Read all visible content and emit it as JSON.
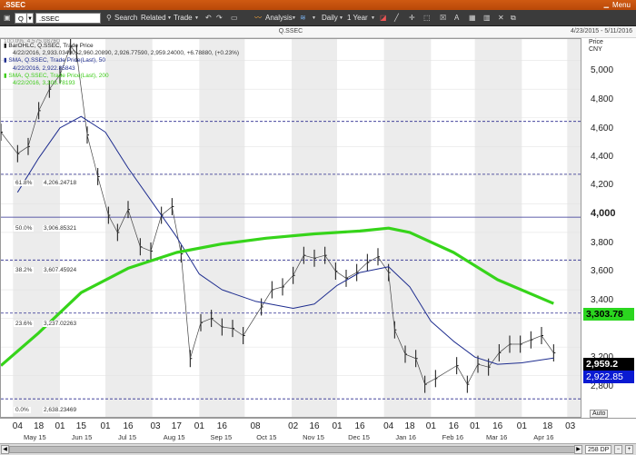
{
  "window": {
    "title": ".SSEC",
    "menu_label": "Menu"
  },
  "toolbar": {
    "symbol_value": "Q",
    "search_value": ".SSEC",
    "search_label": "Search",
    "related_label": "Related",
    "trade_label": "Trade",
    "analysis_label": "Analysis",
    "interval_label": "Daily",
    "range_label": "1 Year"
  },
  "chart_header": {
    "center_title": "Q.SSEC",
    "date_range": "4/23/2015 - 5/11/2016"
  },
  "legend": {
    "line1": "BarOHLC, Q.SSEC, Trade Price",
    "line2": "4/22/2016, 2,933.03490, 2,960.20890, 2,926.77590, 2,959.24000, +6.78880, (+0.23%)",
    "line3": "SMA, Q.SSEC, Trade Price(Last), 50",
    "line4": "4/22/2016, 2,922.85843",
    "line5": "SMA, Q.SSEC, Trade Price(Last), 200",
    "line6": "4/22/2016, 3,303.78193",
    "overlap_text": "100.0%, 4,575.08760"
  },
  "axis": {
    "title_line1": "Price",
    "title_line2": "CNY",
    "ticks": [
      "5,000",
      "4,800",
      "4,600",
      "4,400",
      "4,200",
      "4,000",
      "3,800",
      "3,600",
      "3,400",
      "3,200",
      "2,800"
    ],
    "auto_label": "Auto"
  },
  "price_tags": {
    "sma200": "3,303.78",
    "last": "2,959.2",
    "sma50": "2,922.85"
  },
  "fibonacci": [
    {
      "pct": "61.8%",
      "value": "4,206.24718"
    },
    {
      "pct": "50.0%",
      "value": "3,906.85321"
    },
    {
      "pct": "38.2%",
      "value": "3,607.45924"
    },
    {
      "pct": "23.6%",
      "value": "3,237.02263"
    },
    {
      "pct": "0.0%",
      "value": "2,638.23469"
    }
  ],
  "xaxis": {
    "days": [
      "04",
      "18",
      "01",
      "15",
      "01",
      "16",
      "03",
      "17",
      "01",
      "16",
      "08",
      "02",
      "16",
      "01",
      "16",
      "04",
      "18",
      "01",
      "16",
      "01",
      "16",
      "01",
      "18",
      "03"
    ],
    "months": [
      "May 15",
      "Jun 15",
      "Jul 15",
      "Aug 15",
      "Sep 15",
      "Oct 15",
      "Nov 15",
      "Dec 15",
      "Jan 16",
      "Feb 16",
      "Mar 16",
      "Apr 16"
    ]
  },
  "scrollbar": {
    "range_label": "258 DP"
  },
  "colors": {
    "sma50": "#1e2d8f",
    "sma200": "#36d41a",
    "price_bars": "#111111",
    "fib_lines": "#2b2b8f",
    "titlebar": "#c4500c"
  },
  "chart_data": {
    "type": "line",
    "title": "Q.SSEC",
    "ylabel": "Price CNY",
    "xlabel": "",
    "ylim": [
      2500,
      5150
    ],
    "series": [
      {
        "name": "SMA, Q.SSEC, Trade Price(Last), 50",
        "x": [
          "2015-05-04",
          "2015-05-18",
          "2015-06-01",
          "2015-06-15",
          "2015-07-01",
          "2015-07-16",
          "2015-08-03",
          "2015-08-17",
          "2015-09-01",
          "2015-09-16",
          "2015-10-08",
          "2015-11-02",
          "2015-11-16",
          "2015-12-01",
          "2015-12-16",
          "2016-01-04",
          "2016-01-18",
          "2016-02-01",
          "2016-02-16",
          "2016-03-01",
          "2016-03-16",
          "2016-04-01",
          "2016-04-22"
        ],
        "values": [
          4080,
          4320,
          4530,
          4610,
          4500,
          4250,
          3980,
          3770,
          3510,
          3400,
          3320,
          3270,
          3300,
          3430,
          3520,
          3560,
          3420,
          3180,
          3040,
          2930,
          2880,
          2890,
          2922.86
        ]
      },
      {
        "name": "SMA, Q.SSEC, Trade Price(Last), 200",
        "x": [
          "2015-04-23",
          "2015-05-18",
          "2015-06-15",
          "2015-07-16",
          "2015-08-17",
          "2015-09-16",
          "2015-10-15",
          "2015-11-16",
          "2015-12-16",
          "2016-01-04",
          "2016-01-18",
          "2016-02-16",
          "2016-03-16",
          "2016-04-22"
        ],
        "values": [
          2870,
          3100,
          3380,
          3550,
          3660,
          3720,
          3760,
          3790,
          3810,
          3830,
          3800,
          3660,
          3470,
          3303.78
        ]
      },
      {
        "name": "BarOHLC, Q.SSEC, Trade Price",
        "x": [
          "2015-04-23",
          "2015-05-04",
          "2015-05-11",
          "2015-05-18",
          "2015-05-25",
          "2015-06-01",
          "2015-06-08",
          "2015-06-12",
          "2015-06-19",
          "2015-06-26",
          "2015-07-03",
          "2015-07-09",
          "2015-07-16",
          "2015-07-24",
          "2015-07-31",
          "2015-08-07",
          "2015-08-14",
          "2015-08-20",
          "2015-08-26",
          "2015-09-02",
          "2015-09-09",
          "2015-09-16",
          "2015-09-23",
          "2015-09-30",
          "2015-10-12",
          "2015-10-19",
          "2015-10-26",
          "2015-11-02",
          "2015-11-09",
          "2015-11-16",
          "2015-11-23",
          "2015-11-30",
          "2015-12-07",
          "2015-12-14",
          "2015-12-21",
          "2015-12-28",
          "2016-01-04",
          "2016-01-08",
          "2016-01-15",
          "2016-01-22",
          "2016-01-28",
          "2016-02-04",
          "2016-02-18",
          "2016-02-25",
          "2016-03-03",
          "2016-03-10",
          "2016-03-17",
          "2016-03-24",
          "2016-03-31",
          "2016-04-07",
          "2016-04-14",
          "2016-04-22"
        ],
        "values": [
          4500,
          4350,
          4400,
          4650,
          4800,
          4900,
          5100,
          5050,
          4480,
          4190,
          3920,
          3800,
          3960,
          3700,
          3670,
          3920,
          3980,
          3650,
          2920,
          3170,
          3200,
          3140,
          3130,
          3080,
          3280,
          3400,
          3420,
          3500,
          3640,
          3620,
          3640,
          3530,
          3480,
          3520,
          3590,
          3630,
          3520,
          3120,
          2950,
          2920,
          2740,
          2780,
          2870,
          2740,
          2880,
          2860,
          2960,
          3020,
          3020,
          3050,
          3080,
          2959.24
        ]
      }
    ]
  }
}
